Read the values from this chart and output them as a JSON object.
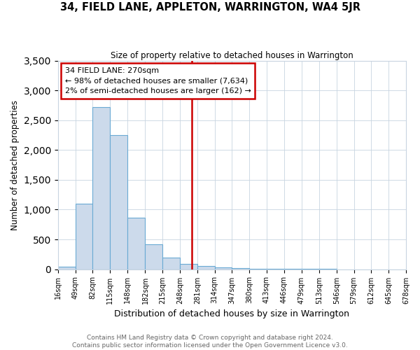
{
  "title": "34, FIELD LANE, APPLETON, WARRINGTON, WA4 5JR",
  "subtitle": "Size of property relative to detached houses in Warrington",
  "xlabel": "Distribution of detached houses by size in Warrington",
  "ylabel": "Number of detached properties",
  "bar_color": "#ccdaeb",
  "bar_edge_color": "#6aaad4",
  "background_color": "#ffffff",
  "grid_color": "#c8d4e0",
  "bin_edges": [
    16,
    49,
    82,
    115,
    148,
    182,
    215,
    248,
    281,
    314,
    347,
    380,
    413,
    446,
    479,
    513,
    546,
    579,
    612,
    645,
    678
  ],
  "bar_heights": [
    40,
    1100,
    2720,
    2250,
    870,
    420,
    190,
    90,
    50,
    30,
    20,
    10,
    5,
    2,
    1,
    1,
    0,
    0,
    0,
    0
  ],
  "property_line_x": 270,
  "property_line_color": "#cc0000",
  "annotation_title": "34 FIELD LANE: 270sqm",
  "annotation_line1": "← 98% of detached houses are smaller (7,634)",
  "annotation_line2": "2% of semi-detached houses are larger (162) →",
  "annotation_box_color": "#ffffff",
  "annotation_box_edge_color": "#cc0000",
  "ylim": [
    0,
    3500
  ],
  "yticks": [
    0,
    500,
    1000,
    1500,
    2000,
    2500,
    3000,
    3500
  ],
  "footer_line1": "Contains HM Land Registry data © Crown copyright and database right 2024.",
  "footer_line2": "Contains public sector information licensed under the Open Government Licence v3.0."
}
